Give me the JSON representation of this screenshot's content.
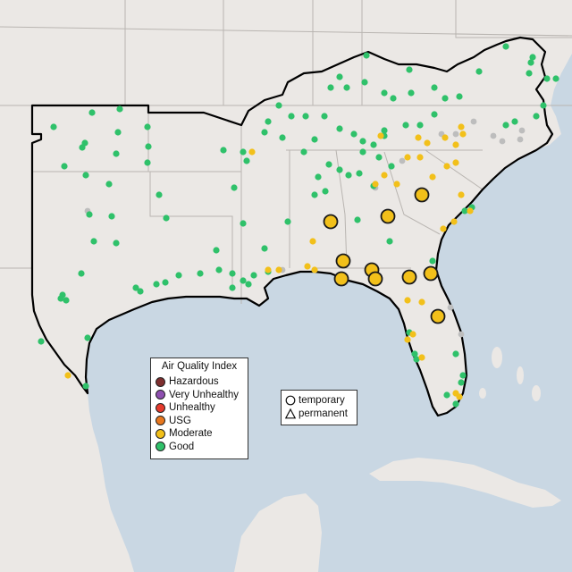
{
  "aqi_legend": {
    "title": "Air Quality Index",
    "categories": [
      {
        "label": "Hazardous",
        "color": "#7e2e2e"
      },
      {
        "label": "Very Unhealthy",
        "color": "#8e4fb0"
      },
      {
        "label": "Unhealthy",
        "color": "#e53a2c"
      },
      {
        "label": "USG",
        "color": "#e8781f"
      },
      {
        "label": "Moderate",
        "color": "#f2c01a"
      },
      {
        "label": "Good",
        "color": "#2fc16a"
      }
    ]
  },
  "shape_legend": {
    "items": [
      {
        "label": "temporary",
        "shape": "circle"
      },
      {
        "label": "permanent",
        "shape": "triangle"
      }
    ]
  },
  "colors": {
    "water": "#c9d7e3",
    "land": "#ebe8e5",
    "state_lines": "#b9b5b1",
    "boundary": "#000000",
    "no_data_monitor": "#bdbdbd"
  }
}
